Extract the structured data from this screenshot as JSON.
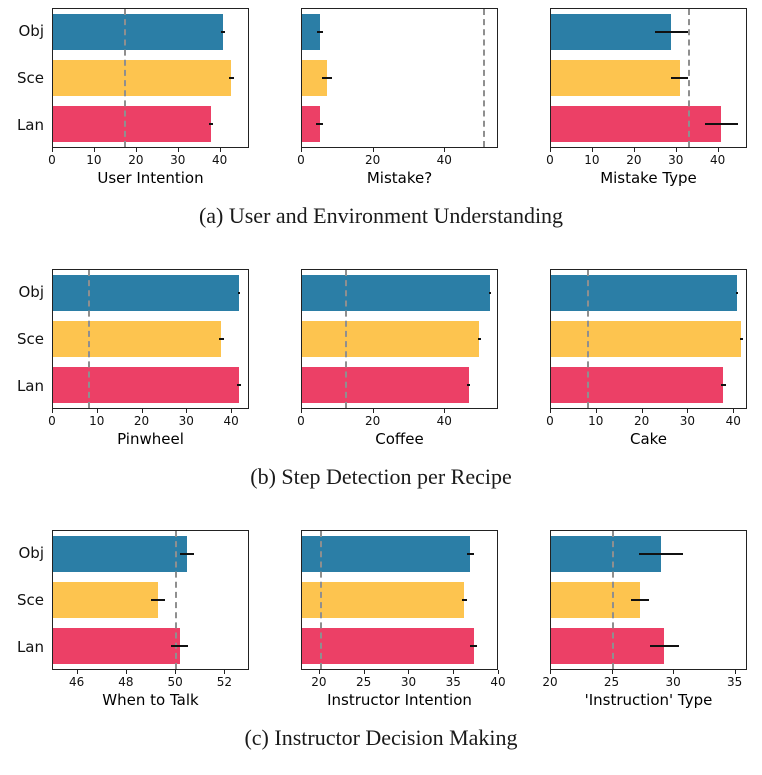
{
  "palette": {
    "obj": "#2b7ea6",
    "sce": "#fdc44f",
    "lan": "#ec4066",
    "baseline_line": "#8f8f8f",
    "error_bar": "#111111"
  },
  "chart_data": [
    {
      "type": "bar",
      "orientation": "horizontal",
      "caption": "(a) User and Environment Understanding",
      "categories": [
        "Obj",
        "Sce",
        "Lan"
      ],
      "legend": "none",
      "grid": false,
      "charts": [
        {
          "xlabel": "User Intention",
          "xlim": [
            0,
            47
          ],
          "xticks": [
            0,
            10,
            20,
            30,
            40
          ],
          "baseline": 17,
          "values": [
            41,
            43,
            38
          ],
          "errors": [
            0.4,
            0.6,
            0.5
          ],
          "show_category_labels": true
        },
        {
          "xlabel": "Mistake?",
          "xlim": [
            0,
            55
          ],
          "xticks": [
            0,
            20,
            40
          ],
          "baseline": 51,
          "values": [
            5,
            7,
            5
          ],
          "errors": [
            0.8,
            1.5,
            1.0
          ],
          "show_category_labels": false
        },
        {
          "xlabel": "Mistake Type",
          "xlim": [
            0,
            47
          ],
          "xticks": [
            0,
            10,
            20,
            30,
            40
          ],
          "baseline": 33,
          "values": [
            29,
            31,
            41
          ],
          "errors": [
            4,
            2,
            4
          ],
          "show_category_labels": false
        }
      ]
    },
    {
      "type": "bar",
      "orientation": "horizontal",
      "caption": "(b) Step Detection per Recipe",
      "categories": [
        "Obj",
        "Sce",
        "Lan"
      ],
      "legend": "none",
      "grid": false,
      "charts": [
        {
          "xlabel": "Pinwheel",
          "xlim": [
            0,
            44
          ],
          "xticks": [
            0,
            10,
            20,
            30,
            40
          ],
          "baseline": 8,
          "values": [
            42,
            38,
            42
          ],
          "errors": [
            0.3,
            0.5,
            0.4
          ],
          "show_category_labels": true
        },
        {
          "xlabel": "Coffee",
          "xlim": [
            0,
            55
          ],
          "xticks": [
            0,
            20,
            40
          ],
          "baseline": 12,
          "values": [
            53,
            50,
            47
          ],
          "errors": [
            0.3,
            0.5,
            0.4
          ],
          "show_category_labels": false
        },
        {
          "xlabel": "Cake",
          "xlim": [
            0,
            43
          ],
          "xticks": [
            0,
            10,
            20,
            30,
            40
          ],
          "baseline": 8,
          "values": [
            41,
            42,
            38
          ],
          "errors": [
            0.3,
            0.3,
            0.5
          ],
          "show_category_labels": false
        }
      ]
    },
    {
      "type": "bar",
      "orientation": "horizontal",
      "caption": "(c) Instructor Decision Making",
      "categories": [
        "Obj",
        "Sce",
        "Lan"
      ],
      "legend": "none",
      "grid": false,
      "charts": [
        {
          "xlabel": "When to Talk",
          "xlim": [
            45,
            53
          ],
          "xticks": [
            46,
            48,
            50,
            52
          ],
          "baseline": 50,
          "values": [
            50.5,
            49.3,
            50.2
          ],
          "errors": [
            0.3,
            0.3,
            0.35
          ],
          "show_category_labels": true
        },
        {
          "xlabel": "Instructor Intention",
          "xlim": [
            18,
            40
          ],
          "xticks": [
            20,
            25,
            30,
            35,
            40
          ],
          "baseline": 20,
          "values": [
            37,
            36.3,
            37.4
          ],
          "errors": [
            0.4,
            0.3,
            0.4
          ],
          "show_category_labels": false
        },
        {
          "xlabel": "'Instruction' Type",
          "xlim": [
            20,
            36
          ],
          "xticks": [
            20,
            25,
            30,
            35
          ],
          "baseline": 25,
          "values": [
            29,
            27.3,
            29.3
          ],
          "errors": [
            1.8,
            0.7,
            1.2
          ],
          "show_category_labels": false
        }
      ]
    }
  ]
}
